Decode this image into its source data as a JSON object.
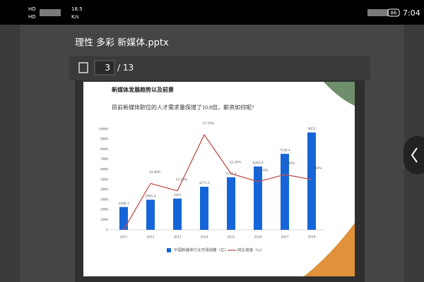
{
  "status_bar": {
    "hd": [
      "HD",
      "HD"
    ],
    "speed_value": "18.5",
    "speed_unit": "K/s",
    "battery": "86",
    "time": "7:04"
  },
  "header": {
    "title": "理性 多彩 新媒体.pptx"
  },
  "toolbar": {
    "page": "3",
    "total": "/ 13"
  },
  "slide": {
    "title": "新媒体发展趋势以及前景",
    "subtitle": "目前新媒体职位的人才需求量保增了10.8倍，薪资如何呢?"
  },
  "chart_data": {
    "type": "bar_line",
    "categories": [
      "2011",
      "2012",
      "2013",
      "2014",
      "2015",
      "2016",
      "2017",
      "2018"
    ],
    "series": [
      {
        "name": "中国新媒体行业市场规模（亿）",
        "type": "bar",
        "color": "#1565d8",
        "values": [
          2268.1,
          2985.4,
          3101,
          4271.3,
          5215.1,
          6283.8,
          7538.4,
          9655
        ]
      },
      {
        "name": "同比增速（%）",
        "type": "line",
        "axis": "y2",
        "color": "#c0504d",
        "values": [
          0,
          18.4,
          15.5,
          37.7,
          22.3,
          19.1,
          21.9,
          20.0
        ],
        "value_labels": [
          null,
          "18.40%",
          "15.50%",
          "37.70%",
          "22.30%",
          "19.10%",
          "21.90%",
          "20.00%"
        ]
      }
    ],
    "ylim": [
      0,
      10000
    ],
    "yticks": [
      0,
      1000,
      2000,
      3000,
      4000,
      5000,
      6000,
      7000,
      8000,
      9000,
      10000
    ],
    "y2lim": [
      0,
      40
    ],
    "legend": "bottom"
  }
}
